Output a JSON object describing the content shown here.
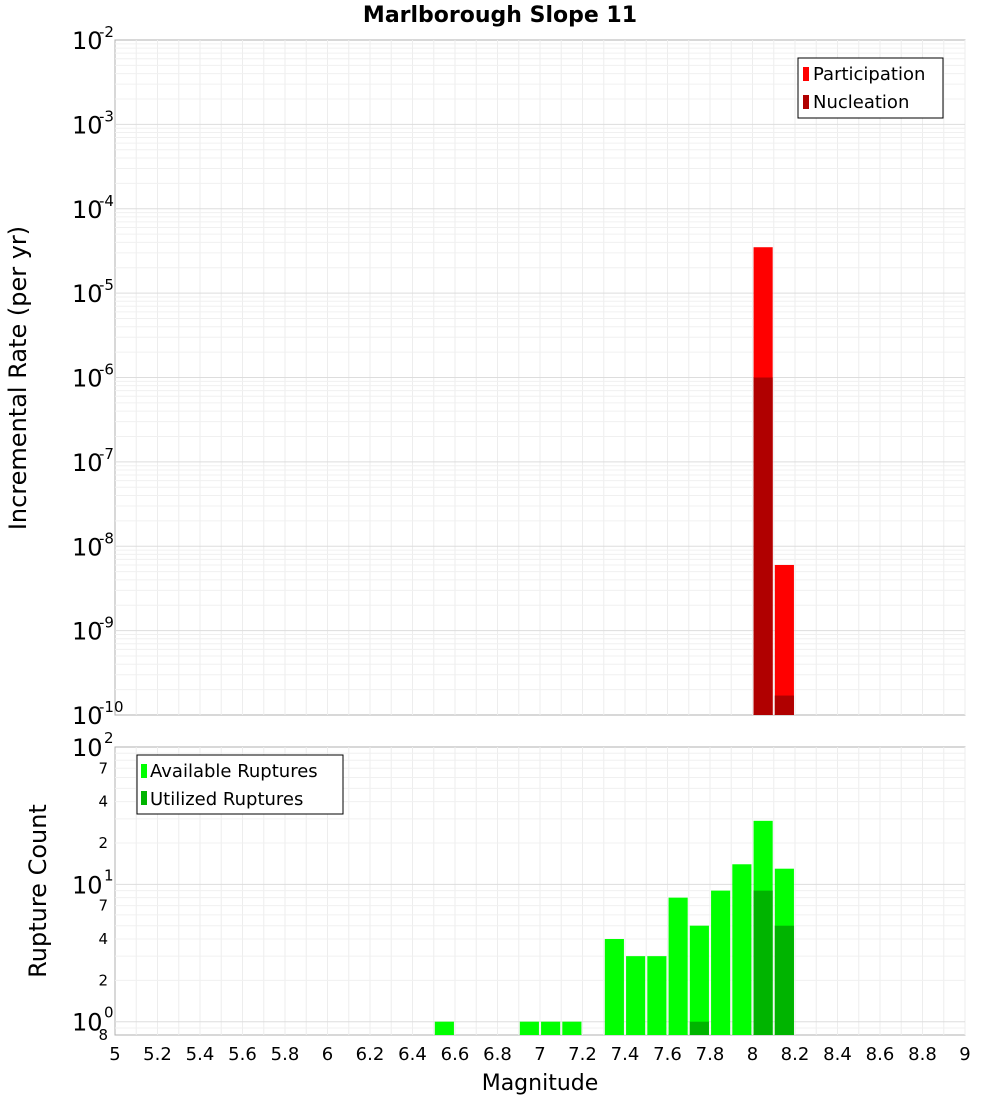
{
  "chart_data": [
    {
      "type": "bar",
      "title": "Marlborough Slope 11",
      "xlabel": "Magnitude",
      "ylabel": "Incremental Rate (per yr)",
      "yscale": "log",
      "xlim": [
        5,
        9
      ],
      "ylim": [
        1e-10,
        0.01
      ],
      "bin_width": 0.1,
      "y_ticks": [
        {
          "base": "10",
          "exp": "-10"
        },
        {
          "base": "10",
          "exp": "-9"
        },
        {
          "base": "10",
          "exp": "-8"
        },
        {
          "base": "10",
          "exp": "-7"
        },
        {
          "base": "10",
          "exp": "-6"
        },
        {
          "base": "10",
          "exp": "-5"
        },
        {
          "base": "10",
          "exp": "-4"
        },
        {
          "base": "10",
          "exp": "-3"
        },
        {
          "base": "10",
          "exp": "-2"
        }
      ],
      "legend_position": "top-right",
      "series": [
        {
          "name": "Participation",
          "color": "#ff0000",
          "x": [
            8.05,
            8.15
          ],
          "values": [
            3.5e-05,
            6e-09
          ]
        },
        {
          "name": "Nucleation",
          "color": "#b00000",
          "x": [
            8.05,
            8.15
          ],
          "values": [
            1e-06,
            1.7e-10
          ]
        }
      ]
    },
    {
      "type": "bar",
      "xlabel": "Magnitude",
      "ylabel": "Rupture Count",
      "yscale": "log",
      "xlim": [
        5,
        9
      ],
      "ylim": [
        0.8,
        100
      ],
      "bin_width": 0.1,
      "x_ticks": [
        "5",
        "5.2",
        "5.4",
        "5.6",
        "5.8",
        "6",
        "6.2",
        "6.4",
        "6.6",
        "6.8",
        "7",
        "7.2",
        "7.4",
        "7.6",
        "7.8",
        "8",
        "8.2",
        "8.4",
        "8.6",
        "8.8",
        "9"
      ],
      "y_major_ticks": [
        {
          "base": "10",
          "exp": "0"
        },
        {
          "base": "10",
          "exp": "1"
        },
        {
          "base": "10",
          "exp": "2"
        }
      ],
      "y_minor_ticks": [
        "8",
        "2",
        "4",
        "7",
        "2",
        "4",
        "7"
      ],
      "legend_position": "top-left",
      "series": [
        {
          "name": "Available Ruptures",
          "color": "#00ff00",
          "x": [
            6.55,
            6.95,
            7.05,
            7.15,
            7.35,
            7.45,
            7.55,
            7.65,
            7.75,
            7.85,
            7.95,
            8.05,
            8.15
          ],
          "values": [
            1,
            1,
            1,
            1,
            4,
            3,
            3,
            8,
            5,
            9,
            14,
            29,
            13
          ]
        },
        {
          "name": "Utilized Ruptures",
          "color": "#00b400",
          "x": [
            7.75,
            8.05,
            8.15
          ],
          "values": [
            1,
            9,
            5
          ]
        }
      ]
    }
  ]
}
